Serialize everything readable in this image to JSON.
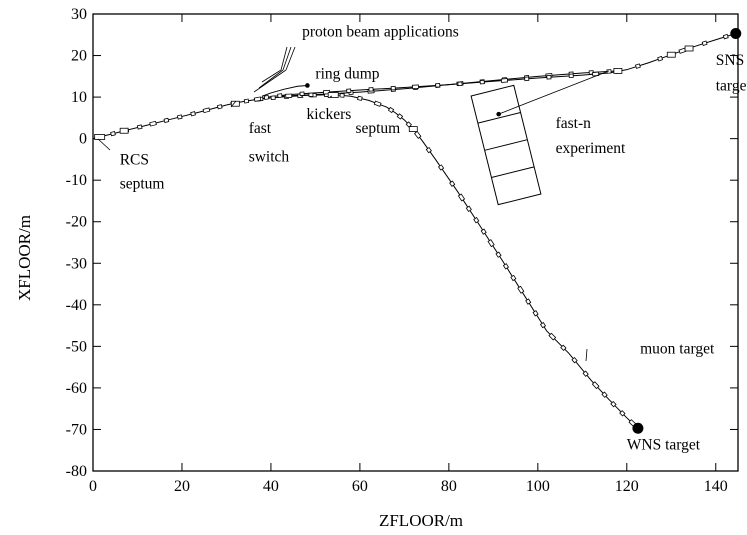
{
  "chart_data": {
    "type": "line",
    "title": "",
    "xlabel": "ZFLOOR/m",
    "ylabel": "XFLOOR/m",
    "xlim": [
      0,
      145
    ],
    "ylim": [
      -80,
      30
    ],
    "xticks": [
      0,
      20,
      40,
      60,
      80,
      100,
      120,
      140
    ],
    "yticks": [
      -80,
      -70,
      -60,
      -50,
      -40,
      -30,
      -20,
      -10,
      0,
      10,
      20,
      30
    ],
    "grid": false,
    "series": [
      {
        "x": [
          0,
          6,
          12,
          18,
          24,
          30,
          33,
          36,
          39,
          42,
          48,
          54,
          58,
          62,
          66,
          68,
          70,
          72,
          74,
          77,
          82,
          87,
          92,
          97,
          102,
          107,
          112,
          116,
          120,
          122.5
        ],
        "y": [
          0,
          1.6,
          3.2,
          4.8,
          6.4,
          8.1,
          8.8,
          9.3,
          9.7,
          10.0,
          10.4,
          10.6,
          10.2,
          9.2,
          7.6,
          6.2,
          4.5,
          2.3,
          -0.5,
          -5,
          -12.8,
          -21,
          -29.3,
          -37.8,
          -46.3,
          -51.7,
          -58.2,
          -62.8,
          -67.2,
          -69.7
        ]
      },
      {
        "x": [
          42,
          46,
          52,
          60,
          70,
          80,
          90,
          100,
          110,
          118
        ],
        "y": [
          10.2,
          10.4,
          10.7,
          11.2,
          12.0,
          13.0,
          14.0,
          15.0,
          15.8,
          16.3
        ]
      },
      {
        "x": [
          36,
          38,
          40,
          44,
          50,
          60,
          70,
          80,
          90,
          100,
          110,
          116,
          120,
          125,
          130,
          135,
          140,
          144.5
        ],
        "y": [
          9.3,
          9.7,
          10.1,
          10.6,
          11.0,
          11.7,
          12.3,
          13.0,
          13.8,
          14.6,
          15.3,
          15.8,
          16.6,
          18.3,
          20.2,
          22.1,
          23.8,
          25.3
        ]
      },
      {
        "x": [
          38,
          40,
          43,
          46,
          48.2
        ],
        "y": [
          10.2,
          11.0,
          11.9,
          12.6,
          12.8
        ]
      }
    ],
    "markers": [
      {
        "label": "SNS target",
        "x": 144.5,
        "y": 25.3,
        "kind": "large"
      },
      {
        "label": "WNS target",
        "x": 122.5,
        "y": -69.7,
        "kind": "large"
      },
      {
        "label": "ring dump",
        "x": 48.2,
        "y": 12.8,
        "kind": "small"
      },
      {
        "label": "fast-n experiment",
        "x": 91.2,
        "y": 5.9,
        "kind": "small"
      }
    ],
    "annotations": [
      {
        "text": "proton beam applications",
        "x": 47,
        "y": 24.6
      },
      {
        "text": "ring dump",
        "x": 50,
        "y": 14.5
      },
      {
        "text": "kickers",
        "x": 48,
        "y": 4.7
      },
      {
        "text": "septum",
        "x": 59,
        "y": 1.3
      },
      {
        "text": "fast",
        "x": 35,
        "y": 1.3
      },
      {
        "text": "switch",
        "x": 35,
        "y": -5.5
      },
      {
        "text": "RCS",
        "x": 6,
        "y": -6.2
      },
      {
        "text": "septum",
        "x": 6,
        "y": -12
      },
      {
        "text": "fast-n",
        "x": 104,
        "y": 2.6
      },
      {
        "text": "experiment",
        "x": 104,
        "y": -3.4
      },
      {
        "text": "SNS",
        "x": 140,
        "y": 17.7
      },
      {
        "text": "target",
        "x": 140,
        "y": 11.6
      },
      {
        "text": "muon target",
        "x": 123,
        "y": -51.7
      },
      {
        "text": "WNS target",
        "x": 120,
        "y": -74.8
      }
    ]
  }
}
